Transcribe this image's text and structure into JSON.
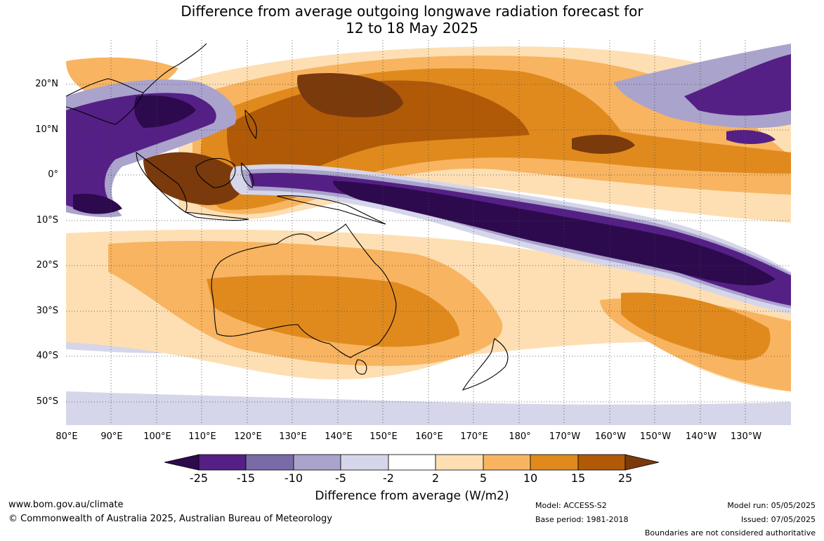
{
  "title": {
    "line1": "Difference from average outgoing longwave radiation forecast for",
    "line2": "12 to 18 May 2025"
  },
  "axes": {
    "lat_labels": [
      "20°N",
      "10°N",
      "0°",
      "10°S",
      "20°S",
      "30°S",
      "40°S",
      "50°S"
    ],
    "lon_labels": [
      "80°E",
      "90°E",
      "100°E",
      "110°E",
      "120°E",
      "130°E",
      "140°E",
      "150°E",
      "160°E",
      "170°E",
      "180°",
      "170°W",
      "160°W",
      "150°W",
      "140°W",
      "130°W"
    ]
  },
  "colorbar": {
    "ticks": [
      "-25",
      "-15",
      "-10",
      "-5",
      "-2",
      "2",
      "5",
      "10",
      "15",
      "25"
    ],
    "colors": {
      "below_-25": "#2d0a4e",
      "-25_-15": "#552085",
      "-15_-10": "#7b6aa8",
      "-10_-5": "#aaa3cc",
      "-5_-2": "#d6d6ea",
      "-2_2": "#ffffff",
      "2_5": "#fddfb3",
      "5_10": "#f8b460",
      "10_15": "#e08a1e",
      "15_25": "#b05a08",
      "above_25": "#7a3a0c"
    },
    "label": "Difference from average (W/m2)"
  },
  "footer": {
    "url": "www.bom.gov.au/climate",
    "copyright": "© Commonwealth of Australia 2025, Australian Bureau of Meteorology",
    "model": "Model: ACCESS-S2",
    "base_period": "Base period: 1981-2018",
    "model_run": "Model run: 05/05/2025",
    "issued": "Issued: 07/05/2025",
    "disclaimer": "Boundaries are not considered authoritative"
  }
}
